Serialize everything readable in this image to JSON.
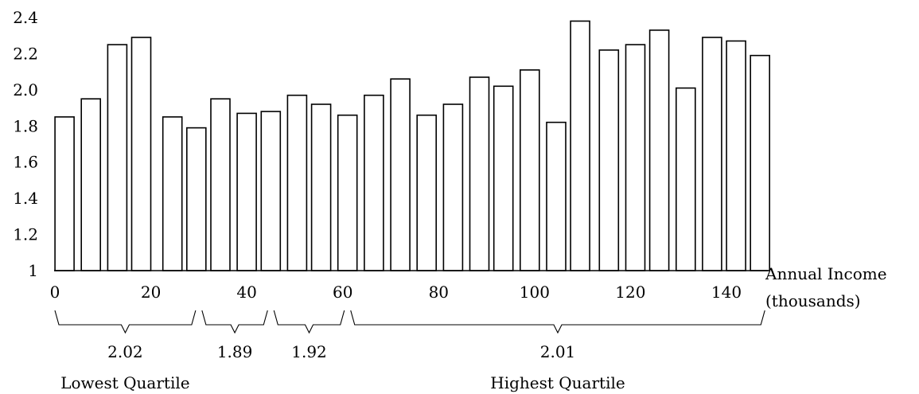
{
  "chart_data": {
    "type": "bar",
    "x": [
      2,
      7.5,
      13,
      18,
      24.5,
      29.5,
      34.5,
      40,
      45,
      50.5,
      55.5,
      61,
      66.5,
      72,
      77.5,
      83,
      88.5,
      93.5,
      99,
      104.5,
      109.5,
      115.5,
      121,
      126,
      131.5,
      137,
      142,
      147
    ],
    "values": [
      1.85,
      1.95,
      2.25,
      2.29,
      1.85,
      1.79,
      1.95,
      1.87,
      1.88,
      1.97,
      1.92,
      1.86,
      1.97,
      2.06,
      1.86,
      1.92,
      2.07,
      2.02,
      2.11,
      1.82,
      2.38,
      2.22,
      2.25,
      2.33,
      2.01,
      2.29,
      2.27,
      2.19
    ],
    "xlim": [
      0,
      148
    ],
    "ylim": [
      1,
      2.4
    ],
    "x_ticks": [
      "0",
      "20",
      "40",
      "60",
      "80",
      "100",
      "120",
      "140"
    ],
    "y_ticks": [
      "1",
      "1.2",
      "1.4",
      "1.6",
      "1.8",
      "2.0",
      "2.2",
      "2.4"
    ],
    "xlabel": [
      "Annual Income",
      "(thousands)"
    ],
    "ylabel": "",
    "title": "",
    "grid": false,
    "groups": [
      {
        "x_start": 0,
        "x_end": 30,
        "value": "2.02",
        "label": "Lowest Quartile"
      },
      {
        "x_start": 30,
        "x_end": 45,
        "value": "1.89",
        "label": ""
      },
      {
        "x_start": 45,
        "x_end": 61,
        "value": "1.92",
        "label": ""
      },
      {
        "x_start": 61,
        "x_end": 148,
        "value": "2.01",
        "label": "Highest Quartile"
      }
    ]
  }
}
